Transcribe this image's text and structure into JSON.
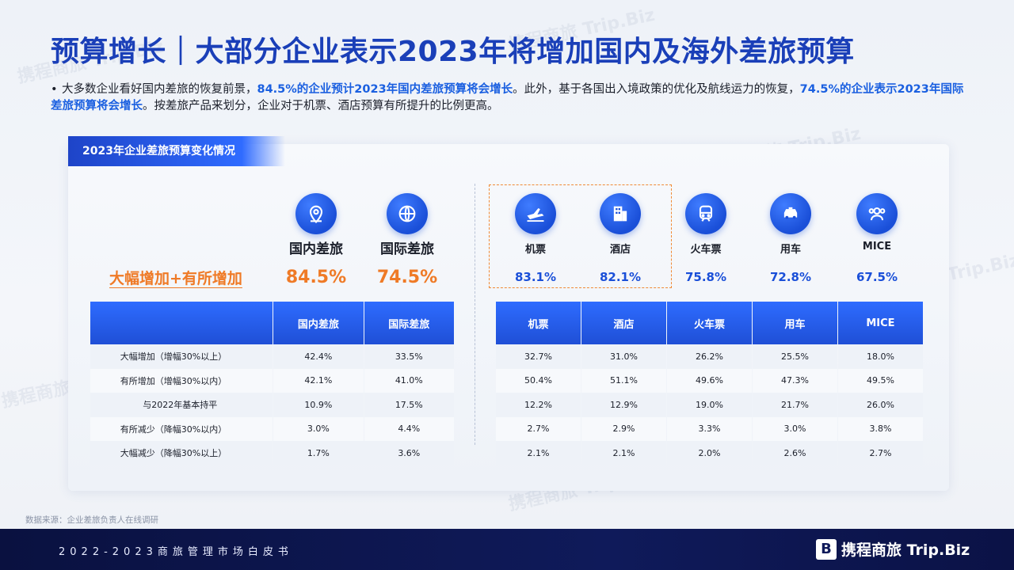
{
  "title": "预算增长｜大部分企业表示2023年将增加国内及海外差旅预算",
  "lead": {
    "bullet": "•",
    "t1": "大多数企业看好国内差旅的恢复前景，",
    "b1": "84.5%的企业预计2023年国内差旅预算将会增长",
    "t2": "。此外，基于各国出入境政策的优化及航线运力的恢复，",
    "b2": "74.5%的企业表示2023年国际差旅预算将会增长",
    "t3": "。按差旅产品来划分，企业对于机票、酒店预算有所提升的比例更高。"
  },
  "card_title": "2023年企业差旅预算变化情况",
  "growth_label": "大幅增加+有所增加",
  "summary_left": [
    {
      "label": "国内差旅",
      "pct": "84.5%",
      "icon": "location-pin-icon"
    },
    {
      "label": "国际差旅",
      "pct": "74.5%",
      "icon": "globe-icon"
    }
  ],
  "summary_right": [
    {
      "label": "机票",
      "pct": "83.1%",
      "icon": "airplane-icon"
    },
    {
      "label": "酒店",
      "pct": "82.1%",
      "icon": "building-icon"
    },
    {
      "label": "火车票",
      "pct": "75.8%",
      "icon": "train-icon"
    },
    {
      "label": "用车",
      "pct": "72.8%",
      "icon": "car-icon"
    },
    {
      "label": "MICE",
      "pct": "67.5%",
      "icon": "people-icon"
    }
  ],
  "table_left": {
    "headers": [
      "",
      "国内差旅",
      "国际差旅"
    ],
    "rows": [
      [
        "大幅增加（增幅30%以上）",
        "42.4%",
        "33.5%"
      ],
      [
        "有所增加（增幅30%以内）",
        "42.1%",
        "41.0%"
      ],
      [
        "与2022年基本持平",
        "10.9%",
        "17.5%"
      ],
      [
        "有所减少（降幅30%以内）",
        "3.0%",
        "4.4%"
      ],
      [
        "大幅减少（降幅30%以上）",
        "1.7%",
        "3.6%"
      ]
    ]
  },
  "table_right": {
    "headers": [
      "机票",
      "酒店",
      "火车票",
      "用车",
      "MICE"
    ],
    "rows": [
      [
        "32.7%",
        "31.0%",
        "26.2%",
        "25.5%",
        "18.0%"
      ],
      [
        "50.4%",
        "51.1%",
        "49.6%",
        "47.3%",
        "49.5%"
      ],
      [
        "12.2%",
        "12.9%",
        "19.0%",
        "21.7%",
        "26.0%"
      ],
      [
        "2.7%",
        "2.9%",
        "3.3%",
        "3.0%",
        "3.8%"
      ],
      [
        "2.1%",
        "2.1%",
        "2.0%",
        "2.6%",
        "2.7%"
      ]
    ]
  },
  "source": "数据来源：企业差旅负责人在线调研",
  "footer": {
    "text": "2022-2023商旅管理市场白皮书",
    "logo_text": "携程商旅 Trip.Biz",
    "logo_mark": "B"
  },
  "watermark": "携程商旅 Trip.Biz",
  "colors": {
    "accent_blue": "#1a4fd8",
    "title_blue": "#1a3fb8",
    "orange": "#ef7a26",
    "footer_bg": "#0f1a5a"
  }
}
